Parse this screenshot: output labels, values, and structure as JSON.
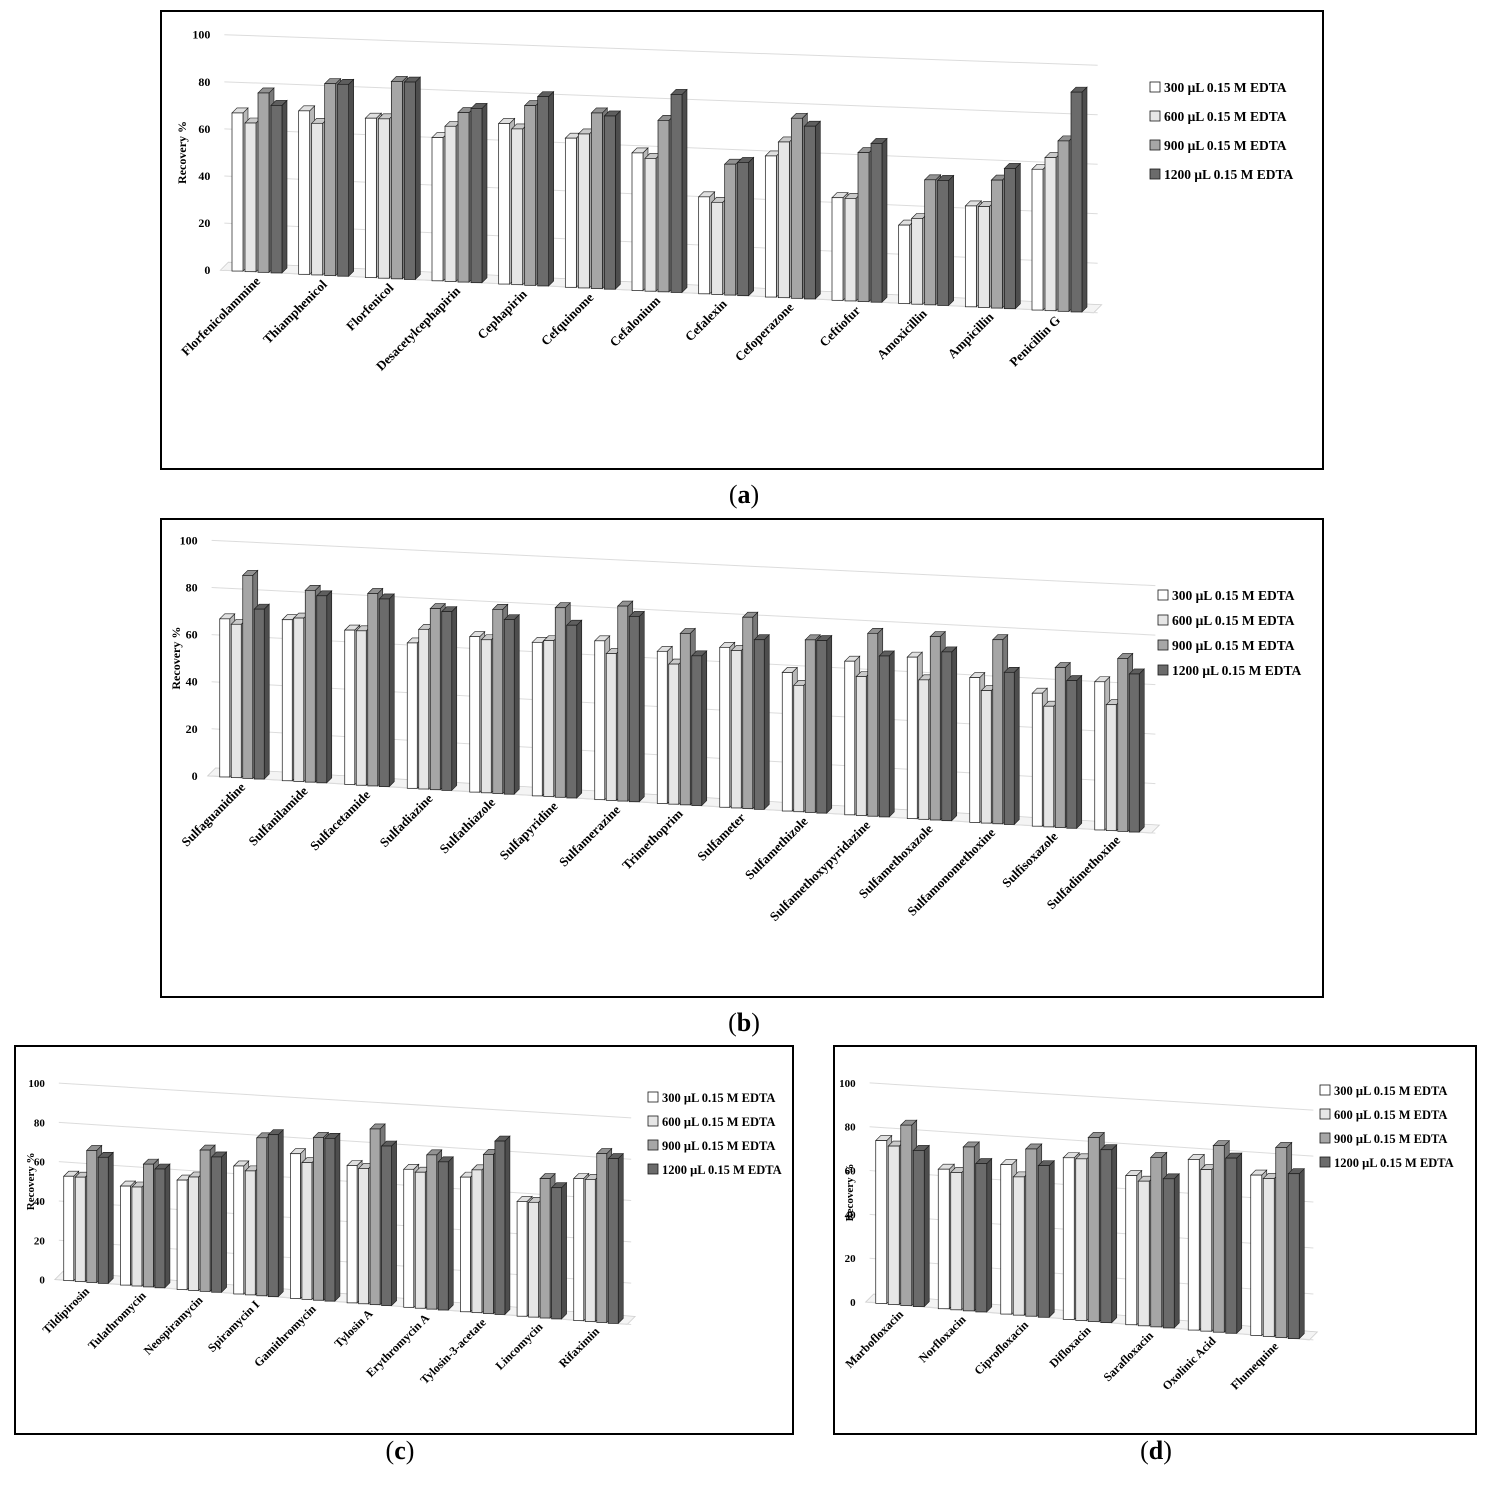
{
  "chart_data": [
    {
      "type": "bar",
      "panel": "a",
      "caption": "a",
      "ylabel": "Recovery %",
      "ylim": [
        0,
        100
      ],
      "yticks": [
        0,
        20,
        40,
        60,
        80,
        100
      ],
      "legend_placement": "right",
      "grid": true,
      "categories": [
        "Florfenicolammine",
        "Thiamphenicol",
        "Florfenicol",
        "Desacetylcephapirin",
        "Cephapirin",
        "Cefquinome",
        "Cefalonium",
        "Cefalexin",
        "Cefoperazone",
        "Ceftiofur",
        "Amoxicillin",
        "Ampicillin",
        "Penicillin G"
      ],
      "series": [
        {
          "name": "300 μL 0.15 M EDTA",
          "color": "#ffffff",
          "values": [
            67,
            69,
            67,
            60,
            67,
            62,
            57,
            40,
            58,
            42,
            32,
            41,
            57
          ]
        },
        {
          "name": "600 μL 0.15 M EDTA",
          "color": "#e6e6e6",
          "values": [
            63,
            64,
            67,
            65,
            65,
            64,
            55,
            38,
            64,
            42,
            35,
            41,
            62
          ]
        },
        {
          "name": "900 μL 0.15 M EDTA",
          "color": "#a6a6a6",
          "values": [
            76,
            81,
            83,
            71,
            75,
            73,
            71,
            54,
            74,
            61,
            51,
            52,
            69
          ]
        },
        {
          "name": "1200 μL 0.15 M EDTA",
          "color": "#6b6b6b",
          "values": [
            71,
            81,
            83,
            73,
            79,
            72,
            82,
            55,
            71,
            65,
            51,
            57,
            89
          ]
        }
      ]
    },
    {
      "type": "bar",
      "panel": "b",
      "caption": "b",
      "ylabel": "Recovery %",
      "ylim": [
        0,
        100
      ],
      "yticks": [
        0,
        20,
        40,
        60,
        80,
        100
      ],
      "legend_placement": "right",
      "grid": true,
      "categories": [
        "Sulfaguanidine",
        "Sulfanilamide",
        "Sulfacetamide",
        "Sulfadiazine",
        "Sulfathiazole",
        "Sulfapyridine",
        "Sulfamerazine",
        "Trimethoprim",
        "Sulfameter",
        "Sulfamethizole",
        "Sulfamethoxypyridazine",
        "Sulfamethoxazole",
        "Sulfamonomethoxine",
        "Sulfisoxazole",
        "Sulfadimethoxine"
      ],
      "series": [
        {
          "name": "300 μL 0.15 M EDTA",
          "color": "#ffffff",
          "values": [
            67,
            68,
            65,
            61,
            65,
            64,
            66,
            63,
            66,
            57,
            63,
            66,
            59,
            54,
            60
          ]
        },
        {
          "name": "600 μL 0.15 M EDTA",
          "color": "#e6e6e6",
          "values": [
            65,
            69,
            65,
            67,
            64,
            65,
            61,
            58,
            65,
            52,
            57,
            57,
            54,
            49,
            51
          ]
        },
        {
          "name": "900 μL 0.15 M EDTA",
          "color": "#a6a6a6",
          "values": [
            86,
            81,
            81,
            76,
            77,
            79,
            81,
            71,
            79,
            71,
            75,
            75,
            75,
            65,
            70
          ]
        },
        {
          "name": "1200 μL 0.15 M EDTA",
          "color": "#6b6b6b",
          "values": [
            72,
            79,
            79,
            75,
            73,
            72,
            77,
            62,
            70,
            71,
            66,
            69,
            62,
            60,
            64
          ]
        }
      ]
    },
    {
      "type": "bar",
      "panel": "c",
      "caption": "c",
      "ylabel": "Recovery %",
      "ylim": [
        0,
        100
      ],
      "yticks": [
        0,
        20,
        40,
        60,
        80,
        100
      ],
      "legend_placement": "right",
      "grid": true,
      "categories": [
        "Tildipirosin",
        "Tulathromycin",
        "Neospiramycin",
        "Spiramycin I",
        "Gamithromycin",
        "Tylosin A",
        "Erythromycin A",
        "Tylosin-3-acetate",
        "Lincomycin",
        "Rifaximin"
      ],
      "series": [
        {
          "name": "300 μL 0.15 M EDTA",
          "color": "#ffffff",
          "values": [
            53,
            50,
            55,
            64,
            72,
            68,
            68,
            66,
            56,
            69
          ]
        },
        {
          "name": "600 μL 0.15 M EDTA",
          "color": "#e6e6e6",
          "values": [
            53,
            50,
            57,
            62,
            68,
            67,
            67,
            70,
            56,
            69
          ]
        },
        {
          "name": "900 μL 0.15 M EDTA",
          "color": "#a6a6a6",
          "values": [
            67,
            62,
            71,
            79,
            81,
            87,
            76,
            78,
            68,
            82
          ]
        },
        {
          "name": "1200 μL 0.15 M EDTA",
          "color": "#6b6b6b",
          "values": [
            64,
            60,
            68,
            81,
            81,
            79,
            73,
            85,
            64,
            80
          ]
        }
      ]
    },
    {
      "type": "bar",
      "panel": "d",
      "caption": "d",
      "ylabel": "Recovery %",
      "ylim": [
        0,
        100
      ],
      "yticks": [
        0,
        20,
        40,
        60,
        80,
        100
      ],
      "legend_placement": "right",
      "grid": true,
      "categories": [
        "Marbofloxacin",
        "Norfloxacin",
        "Ciprofloxacin",
        "Difloxacin",
        "Sarafloxacin",
        "Oxolinic Acid",
        "Flumequine"
      ],
      "series": [
        {
          "name": "300 μL 0.15 M EDTA",
          "color": "#ffffff",
          "values": [
            74,
            63,
            67,
            72,
            66,
            75,
            70
          ]
        },
        {
          "name": "600 μL 0.15 M EDTA",
          "color": "#e6e6e6",
          "values": [
            72,
            62,
            62,
            72,
            64,
            71,
            69
          ]
        },
        {
          "name": "900 μL 0.15 M EDTA",
          "color": "#a6a6a6",
          "values": [
            82,
            74,
            75,
            82,
            75,
            82,
            83
          ]
        },
        {
          "name": "1200 μL 0.15 M EDTA",
          "color": "#6b6b6b",
          "values": [
            71,
            67,
            68,
            77,
            66,
            77,
            72
          ]
        }
      ]
    }
  ]
}
